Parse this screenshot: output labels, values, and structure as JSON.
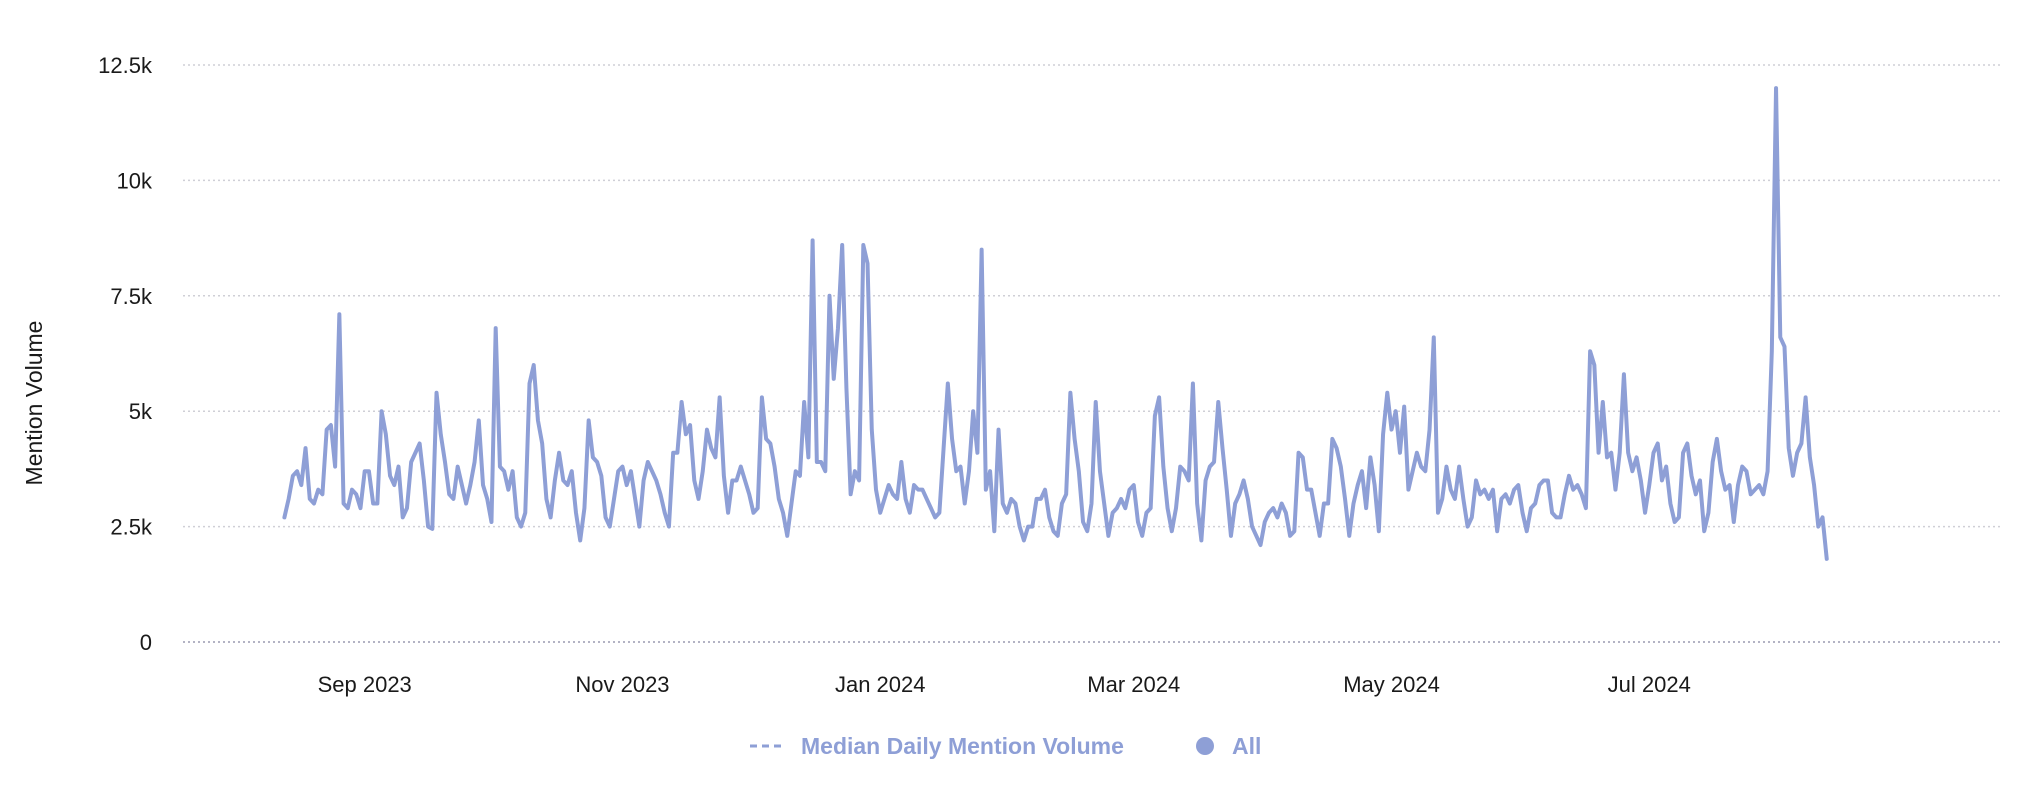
{
  "chart_data": {
    "type": "line",
    "ylabel": "Mention Volume",
    "xlabel": "",
    "ylim": [
      0,
      12500
    ],
    "y_ticks": [
      {
        "value": 0,
        "label": "0"
      },
      {
        "value": 2500,
        "label": "2.5k"
      },
      {
        "value": 5000,
        "label": "5k"
      },
      {
        "value": 7500,
        "label": "7.5k"
      },
      {
        "value": 10000,
        "label": "10k"
      },
      {
        "value": 12500,
        "label": "12.5k"
      }
    ],
    "xlim": [
      "2023-07-20",
      "2024-09-22"
    ],
    "x_ticks": [
      {
        "date": "2023-09-01",
        "label": "Sep 2023"
      },
      {
        "date": "2023-11-01",
        "label": "Nov 2023"
      },
      {
        "date": "2024-01-01",
        "label": "Jan 2024"
      },
      {
        "date": "2024-03-01",
        "label": "Mar 2024"
      },
      {
        "date": "2024-05-01",
        "label": "May 2024"
      },
      {
        "date": "2024-07-01",
        "label": "Jul 2024"
      }
    ],
    "grid": true,
    "legend_position": "bottom-center",
    "legend": [
      {
        "label": "Median Daily Mention Volume",
        "marker": "dashed-line"
      },
      {
        "label": "All",
        "marker": "circle"
      }
    ],
    "colors": {
      "series": "#8e9fd6",
      "grid": "#cfcfd6",
      "axis": "#9a9ab0"
    },
    "series": [
      {
        "name": "All",
        "start_date": "2023-08-13",
        "values": [
          2700,
          3100,
          3600,
          3700,
          3400,
          4200,
          3100,
          3000,
          3300,
          3200,
          4600,
          4700,
          3800,
          7100,
          3000,
          2900,
          3300,
          3200,
          2900,
          3700,
          3700,
          3000,
          3000,
          5000,
          4500,
          3600,
          3400,
          3800,
          2700,
          2900,
          3900,
          4100,
          4300,
          3500,
          2500,
          2450,
          5400,
          4500,
          3900,
          3200,
          3100,
          3800,
          3400,
          3000,
          3400,
          3900,
          4800,
          3400,
          3100,
          2600,
          6800,
          3800,
          3700,
          3300,
          3700,
          2700,
          2500,
          2800,
          5600,
          6000,
          4800,
          4300,
          3100,
          2700,
          3500,
          4100,
          3500,
          3400,
          3700,
          2800,
          2200,
          2900,
          4800,
          4000,
          3900,
          3600,
          2700,
          2500,
          3100,
          3700,
          3800,
          3400,
          3700,
          3100,
          2500,
          3500,
          3900,
          3700,
          3500,
          3200,
          2800,
          2500,
          4100,
          4100,
          5200,
          4500,
          4700,
          3500,
          3100,
          3700,
          4600,
          4200,
          4000,
          5300,
          3600,
          2800,
          3500,
          3500,
          3800,
          3500,
          3200,
          2800,
          2900,
          5300,
          4400,
          4300,
          3800,
          3100,
          2800,
          2300,
          3000,
          3700,
          3600,
          5200,
          4000,
          8700,
          3900,
          3900,
          3700,
          7500,
          5700,
          6800,
          8600,
          5500,
          3200,
          3700,
          3500,
          8600,
          8200,
          4600,
          3300,
          2800,
          3100,
          3400,
          3200,
          3100,
          3900,
          3100,
          2800,
          3400,
          3300,
          3300,
          3100,
          2900,
          2700,
          2800,
          4200,
          5600,
          4400,
          3700,
          3800,
          3000,
          3700,
          5000,
          4100,
          8500,
          3300,
          3700,
          2400,
          4600,
          3000,
          2800,
          3100,
          3000,
          2500,
          2200,
          2500,
          2500,
          3100,
          3100,
          3300,
          2700,
          2400,
          2300,
          3000,
          3200,
          5400,
          4400,
          3700,
          2600,
          2400,
          3000,
          5200,
          3700,
          3000,
          2300,
          2800,
          2900,
          3100,
          2900,
          3300,
          3400,
          2600,
          2300,
          2800,
          2900,
          4900,
          5300,
          3800,
          2900,
          2400,
          2900,
          3800,
          3700,
          3500,
          5600,
          3000,
          2200,
          3500,
          3800,
          3900,
          5200,
          4200,
          3300,
          2300,
          3000,
          3200,
          3500,
          3100,
          2500,
          2300,
          2100,
          2600,
          2800,
          2900,
          2700,
          3000,
          2800,
          2300,
          2400,
          4100,
          4000,
          3300,
          3300,
          2800,
          2300,
          3000,
          3000,
          4400,
          4200,
          3800,
          3100,
          2300,
          3000,
          3400,
          3700,
          2900,
          4000,
          3400,
          2400,
          4500,
          5400,
          4600,
          5000,
          4100,
          5100,
          3300,
          3700,
          4100,
          3800,
          3700,
          4600,
          6600,
          2800,
          3100,
          3800,
          3300,
          3100,
          3800,
          3100,
          2500,
          2700,
          3500,
          3200,
          3300,
          3100,
          3300,
          2400,
          3100,
          3200,
          3000,
          3300,
          3400,
          2800,
          2400,
          2900,
          3000,
          3400,
          3500,
          3500,
          2800,
          2700,
          2700,
          3200,
          3600,
          3300,
          3400,
          3200,
          2900,
          6300,
          6000,
          4100,
          5200,
          4000,
          4100,
          3300,
          4100,
          5800,
          4100,
          3700,
          4000,
          3500,
          2800,
          3400,
          4100,
          4300,
          3500,
          3800,
          3000,
          2600,
          2700,
          4100,
          4300,
          3600,
          3200,
          3500,
          2400,
          2800,
          3900,
          4400,
          3700,
          3300,
          3400,
          2600,
          3400,
          3800,
          3700,
          3200,
          3300,
          3400,
          3200,
          3700,
          6300,
          12000,
          6600,
          6400,
          4200,
          3600,
          4100,
          4300,
          5300,
          4000,
          3400,
          2500,
          2700,
          1800
        ]
      }
    ]
  }
}
